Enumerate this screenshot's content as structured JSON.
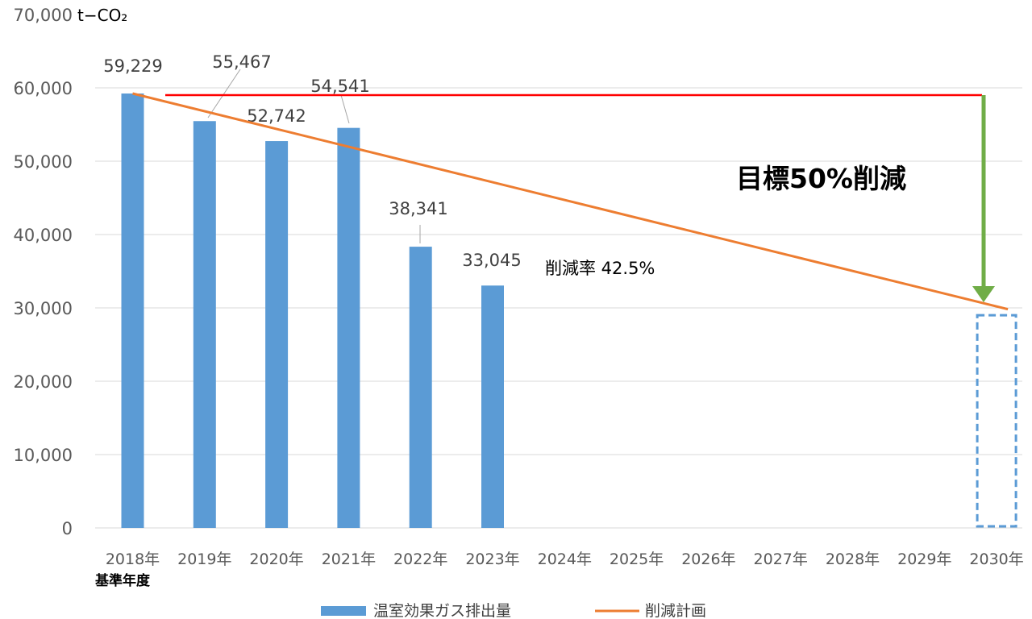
{
  "chart_data": {
    "type": "bar",
    "unit_label": "t−CO₂",
    "categories": [
      "2018年",
      "2019年",
      "2020年",
      "2021年",
      "2022年",
      "2023年",
      "2024年",
      "2025年",
      "2026年",
      "2027年",
      "2028年",
      "2029年",
      "2030年"
    ],
    "base_year_note": "基準年度",
    "ylim": [
      0,
      70000
    ],
    "yticks": [
      "0",
      "10,000",
      "20,000",
      "30,000",
      "40,000",
      "50,000",
      "60,000",
      "70,000"
    ],
    "grid": true,
    "series": [
      {
        "name": "温室効果ガス排出量",
        "type": "bar",
        "color": "#5b9bd5",
        "values": [
          59229,
          55467,
          52742,
          54541,
          38341,
          33045,
          null,
          null,
          null,
          null,
          null,
          null,
          null
        ],
        "data_labels": [
          "59,229",
          "55,467",
          "52,742",
          "54,541",
          "38,341",
          "33,045"
        ]
      },
      {
        "name": "削減計画",
        "type": "line",
        "color": "#ed7d31",
        "points": [
          {
            "x": "2018年",
            "y": 59229
          },
          {
            "x": "2030年",
            "y": 29600
          }
        ]
      }
    ],
    "annotations": {
      "target_text": "目標50%削減",
      "reduction_rate_text": "削減率  42.5%",
      "baseline_line": {
        "y": 59229,
        "color": "#ff0000"
      },
      "target_arrow_color": "#70ad47",
      "target_box": {
        "x": "2030年",
        "y": 29000,
        "color": "#5b9bd5",
        "style": "dashed"
      }
    },
    "legend": {
      "position": "bottom"
    }
  }
}
